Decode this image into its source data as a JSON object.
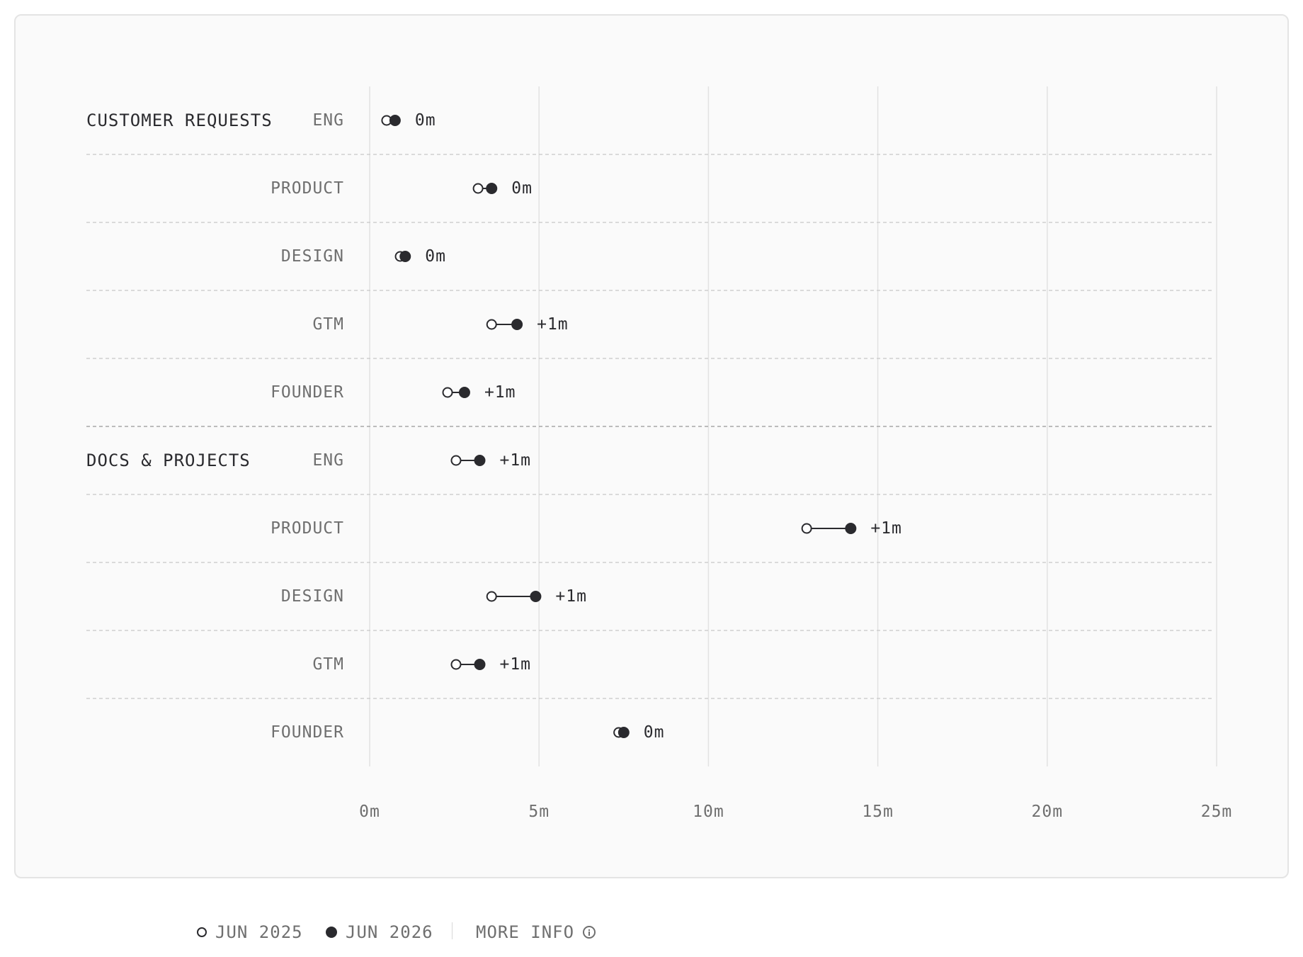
{
  "chart_data": {
    "type": "dumbbell",
    "title": "",
    "xlabel": "",
    "ylabel": "",
    "xlim": [
      0,
      25
    ],
    "x_ticks": [
      0,
      5,
      10,
      15,
      20,
      25
    ],
    "x_tick_labels": [
      "0m",
      "5m",
      "10m",
      "15m",
      "20m",
      "25m"
    ],
    "grid": true,
    "legend_position": "bottom",
    "series": [
      {
        "name": "JUN 2025",
        "marker": "open"
      },
      {
        "name": "JUN 2026",
        "marker": "filled"
      }
    ],
    "groups": [
      {
        "label": "CUSTOMER REQUESTS",
        "rows": [
          {
            "label": "ENG",
            "start": 0.5,
            "end": 0.75,
            "change": "0m"
          },
          {
            "label": "PRODUCT",
            "start": 3.2,
            "end": 3.6,
            "change": "0m"
          },
          {
            "label": "DESIGN",
            "start": 0.9,
            "end": 1.05,
            "change": "0m"
          },
          {
            "label": "GTM",
            "start": 3.6,
            "end": 4.35,
            "change": "+1m"
          },
          {
            "label": "FOUNDER",
            "start": 2.3,
            "end": 2.8,
            "change": "+1m"
          }
        ]
      },
      {
        "label": "DOCS & PROJECTS",
        "rows": [
          {
            "label": "ENG",
            "start": 2.55,
            "end": 3.25,
            "change": "+1m"
          },
          {
            "label": "PRODUCT",
            "start": 12.9,
            "end": 14.2,
            "change": "+1m"
          },
          {
            "label": "DESIGN",
            "start": 3.6,
            "end": 4.9,
            "change": "+1m"
          },
          {
            "label": "GTM",
            "start": 2.55,
            "end": 3.25,
            "change": "+1m"
          },
          {
            "label": "FOUNDER",
            "start": 7.35,
            "end": 7.5,
            "change": "0m"
          }
        ]
      }
    ],
    "colors": {
      "dot": "#2a2a2e",
      "label": "#6f6f6f",
      "group_label": "#2a2a2e",
      "grid": "#e2e2e2",
      "divider": "#c8c8c8"
    }
  },
  "legend": {
    "items": [
      {
        "label": "JUN 2025",
        "marker": "open"
      },
      {
        "label": "JUN 2026",
        "marker": "filled"
      }
    ],
    "more_info_label": "MORE INFO",
    "info_icon": "info-icon"
  }
}
